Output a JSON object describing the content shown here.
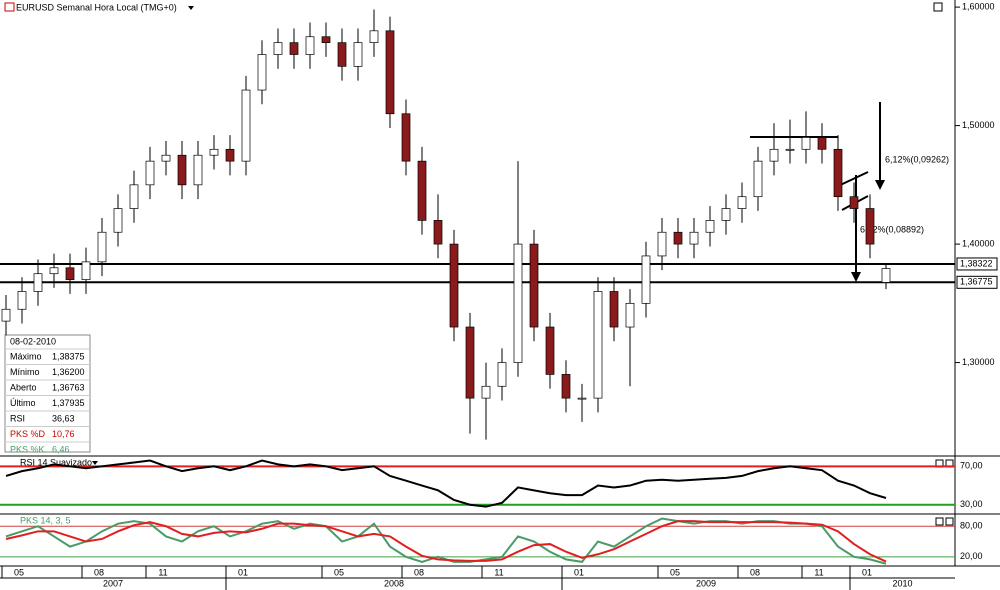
{
  "header": {
    "title": "EURUSD Semanal Hora Local (TMG+0)"
  },
  "chart_data": {
    "type": "candlestick",
    "categories": [
      null,
      "05",
      null,
      null,
      null,
      null,
      "08",
      null,
      null,
      null,
      "11",
      null,
      null,
      null,
      null,
      "01",
      null,
      null,
      null,
      null,
      null,
      "05",
      null,
      null,
      null,
      null,
      "08",
      null,
      null,
      null,
      null,
      "11",
      null,
      null,
      null,
      null,
      "01",
      null,
      null,
      null,
      null,
      null,
      "05",
      null,
      null,
      null,
      null,
      "08",
      null,
      null,
      null,
      "11",
      null,
      null,
      "01",
      null
    ],
    "years": [
      "2007",
      "2008",
      "2009",
      "2010"
    ],
    "open": [
      1.335,
      1.345,
      1.36,
      1.375,
      1.38,
      1.37,
      1.385,
      1.41,
      1.43,
      1.45,
      1.47,
      1.475,
      1.45,
      1.475,
      1.48,
      1.47,
      1.53,
      1.56,
      1.57,
      1.56,
      1.575,
      1.57,
      1.55,
      1.57,
      1.58,
      1.51,
      1.47,
      1.42,
      1.4,
      1.33,
      1.27,
      1.28,
      1.3,
      1.4,
      1.33,
      1.29,
      1.27,
      1.27,
      1.36,
      1.33,
      1.35,
      1.39,
      1.41,
      1.4,
      1.41,
      1.42,
      1.43,
      1.44,
      1.47,
      1.48,
      1.48,
      1.49,
      1.48,
      1.44,
      1.43,
      1.36763
    ],
    "high": [
      1.357,
      1.372,
      1.387,
      1.392,
      1.392,
      1.397,
      1.422,
      1.442,
      1.462,
      1.482,
      1.487,
      1.487,
      1.487,
      1.492,
      1.492,
      1.542,
      1.572,
      1.582,
      1.582,
      1.587,
      1.587,
      1.582,
      1.582,
      1.598,
      1.592,
      1.522,
      1.482,
      1.442,
      1.412,
      1.342,
      1.3,
      1.312,
      1.47,
      1.412,
      1.342,
      1.302,
      1.282,
      1.372,
      1.372,
      1.362,
      1.402,
      1.422,
      1.422,
      1.422,
      1.432,
      1.442,
      1.452,
      1.482,
      1.502,
      1.505,
      1.512,
      1.502,
      1.492,
      1.452,
      1.442,
      1.38375
    ],
    "low": [
      1.323,
      1.333,
      1.348,
      1.363,
      1.358,
      1.358,
      1.373,
      1.398,
      1.418,
      1.438,
      1.458,
      1.438,
      1.438,
      1.463,
      1.458,
      1.458,
      1.518,
      1.548,
      1.548,
      1.548,
      1.558,
      1.538,
      1.538,
      1.558,
      1.498,
      1.458,
      1.408,
      1.388,
      1.318,
      1.24,
      1.235,
      1.268,
      1.288,
      1.318,
      1.278,
      1.258,
      1.25,
      1.258,
      1.318,
      1.28,
      1.338,
      1.378,
      1.388,
      1.388,
      1.398,
      1.408,
      1.418,
      1.428,
      1.458,
      1.468,
      1.468,
      1.468,
      1.428,
      1.418,
      1.388,
      1.362
    ],
    "close": [
      1.345,
      1.36,
      1.375,
      1.38,
      1.37,
      1.385,
      1.41,
      1.43,
      1.45,
      1.47,
      1.475,
      1.45,
      1.475,
      1.48,
      1.47,
      1.53,
      1.56,
      1.57,
      1.56,
      1.575,
      1.57,
      1.55,
      1.57,
      1.58,
      1.51,
      1.47,
      1.42,
      1.4,
      1.33,
      1.27,
      1.28,
      1.3,
      1.4,
      1.33,
      1.29,
      1.27,
      1.27,
      1.36,
      1.33,
      1.35,
      1.39,
      1.41,
      1.4,
      1.41,
      1.42,
      1.43,
      1.44,
      1.47,
      1.48,
      1.48,
      1.49,
      1.48,
      1.44,
      1.43,
      1.4,
      1.37935
    ],
    "up_color": "#ffffff",
    "down_color": "#8b1a1a",
    "ylim": [
      1.222,
      1.606
    ],
    "yticks": [
      {
        "value": 1.6,
        "label": "1,60000"
      },
      {
        "value": 1.5,
        "label": "1,50000"
      },
      {
        "value": 1.4,
        "label": "1,40000"
      },
      {
        "value": 1.3,
        "label": "1,30000"
      }
    ],
    "hlines": [
      {
        "value": 1.38322,
        "label": "1,38322"
      },
      {
        "value": 1.36775,
        "label": "1,36775"
      }
    ],
    "annotations": [
      "6,12%(0,09262)",
      "6,12%(0,08892)"
    ],
    "info": {
      "date": "08-02-2010",
      "rows": [
        [
          "Máximo",
          "1,38375"
        ],
        [
          "Mínimo",
          "1,36200"
        ],
        [
          "Aberto",
          "1,36763"
        ],
        [
          "Último",
          "1,37935"
        ],
        [
          "RSI",
          "36,63"
        ],
        [
          "PKS %D",
          "10,76"
        ],
        [
          "PKS %K",
          "6,46"
        ]
      ]
    }
  },
  "rsi": {
    "title": "RSI 14 Suavizado",
    "ylim": [
      21.4,
      79.7
    ],
    "levels": [
      {
        "value": 70,
        "label": "70,00",
        "color": "#e02020"
      },
      {
        "value": 30,
        "label": "30,00",
        "color": "#20a020"
      }
    ],
    "series": [
      {
        "name": "RSI",
        "color": "#000000",
        "values": [
          60,
          65,
          68,
          72,
          70,
          68,
          70,
          72,
          74,
          76,
          70,
          65,
          68,
          70,
          66,
          70,
          76,
          72,
          70,
          72,
          70,
          66,
          68,
          70,
          60,
          55,
          50,
          45,
          35,
          30,
          28,
          32,
          48,
          45,
          42,
          40,
          40,
          50,
          48,
          50,
          55,
          56,
          55,
          56,
          57,
          58,
          60,
          65,
          68,
          70,
          68,
          66,
          55,
          50,
          42,
          37
        ]
      }
    ]
  },
  "pks": {
    "title": "PKS 14, 3, 5",
    "ylim": [
      2,
      102
    ],
    "levels": [
      {
        "value": 80,
        "label": "80,00",
        "color": "#d04040"
      },
      {
        "value": 20,
        "label": "20,00",
        "color": "#40a040"
      }
    ],
    "series": [
      {
        "name": "PKS %K",
        "color": "#4a9a6a",
        "values": [
          60,
          70,
          80,
          60,
          40,
          50,
          70,
          85,
          90,
          85,
          60,
          50,
          70,
          80,
          60,
          70,
          85,
          90,
          75,
          85,
          80,
          50,
          60,
          85,
          40,
          20,
          10,
          20,
          10,
          10,
          15,
          20,
          60,
          50,
          30,
          15,
          10,
          50,
          40,
          60,
          80,
          95,
          90,
          85,
          90,
          90,
          85,
          90,
          90,
          85,
          85,
          80,
          40,
          20,
          15,
          6.46
        ]
      },
      {
        "name": "PKS %D",
        "color": "#e02020",
        "values": [
          55,
          62,
          70,
          70,
          60,
          50,
          55,
          70,
          82,
          88,
          80,
          65,
          60,
          67,
          70,
          68,
          75,
          85,
          85,
          82,
          80,
          70,
          60,
          65,
          60,
          40,
          22,
          15,
          13,
          12,
          12,
          15,
          30,
          43,
          45,
          30,
          18,
          25,
          35,
          50,
          65,
          80,
          90,
          90,
          88,
          88,
          88,
          88,
          88,
          87,
          85,
          83,
          70,
          45,
          25,
          10.76
        ]
      }
    ]
  }
}
